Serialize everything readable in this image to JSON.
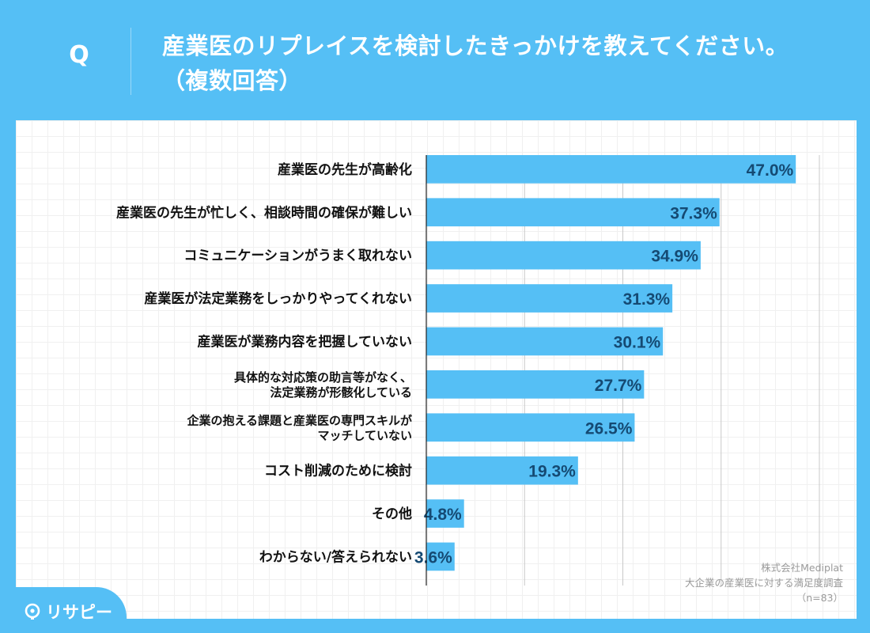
{
  "header": {
    "q_label": "Q",
    "question": "産業医のリプレイスを検討したきっかけを教えてください。",
    "question_sub": "（複数回答）"
  },
  "chart_data": {
    "type": "bar",
    "orientation": "horizontal",
    "categories": [
      [
        "産業医の先生が高齢化"
      ],
      [
        "産業医の先生が忙しく、相談時間の確保が難しい"
      ],
      [
        "コミュニケーションがうまく取れない"
      ],
      [
        "産業医が法定業務をしっかりやってくれない"
      ],
      [
        "産業医が業務内容を把握していない"
      ],
      [
        "具体的な対応策の助言等がなく、",
        "法定業務が形骸化している"
      ],
      [
        "企業の抱える課題と産業医の専門スキルが",
        "マッチしていない"
      ],
      [
        "コスト削減のために検討"
      ],
      [
        "その他"
      ],
      [
        "わからない/答えられない"
      ]
    ],
    "values": [
      47.0,
      37.3,
      34.9,
      31.3,
      30.1,
      27.7,
      26.5,
      19.3,
      4.8,
      3.6
    ],
    "value_labels": [
      "47.0%",
      "37.3%",
      "34.9%",
      "31.3%",
      "30.1%",
      "27.7%",
      "26.5%",
      "19.3%",
      "4.8%",
      "3.6%"
    ],
    "xlim": [
      0,
      50
    ],
    "gridlines": [
      12.5,
      25,
      37.5,
      50
    ],
    "bar_color": "#55bff5",
    "label_color": "#154a73"
  },
  "source": {
    "company": "株式会社Mediplat",
    "survey": "大企業の産業医に対する満足度調査",
    "sample": "（n=83）"
  },
  "brand": {
    "name": "リサピー",
    "icon": "lightbulb-icon"
  }
}
